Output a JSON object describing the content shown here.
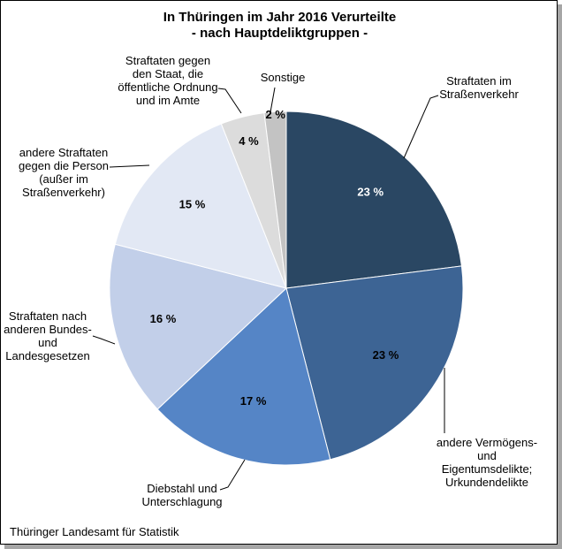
{
  "title": {
    "line1": "In Thüringen im Jahr 2016 Verurteilte",
    "line2": "- nach Hauptdeliktgruppen -"
  },
  "source": "Thüringer Landesamt für Statistik",
  "chart_data": {
    "type": "pie",
    "title": "In Thüringen im Jahr 2016 Verurteilte - nach Hauptdeliktgruppen -",
    "unit": "%",
    "start_angle_deg": 0,
    "direction": "clockwise",
    "legend_position": "outside-labels-with-leader-lines",
    "slices": [
      {
        "label": "Straftaten im\nStraßenverkehr",
        "value": 23,
        "pct_label": "23 %",
        "color": "#2A4763",
        "pct_color": "#FFFFFF"
      },
      {
        "label": "andere Vermögens-\nund\nEigentumsdelikte;\nUrkundendelikte",
        "value": 23,
        "pct_label": "23 %",
        "color": "#3D6494",
        "pct_color": "#000000"
      },
      {
        "label": "Diebstahl und\nUnterschlagung",
        "value": 17,
        "pct_label": "17 %",
        "color": "#5585C6",
        "pct_color": "#000000"
      },
      {
        "label": "Straftaten nach\nanderen Bundes-\nund\nLandesgesetzen",
        "value": 16,
        "pct_label": "16 %",
        "color": "#C2CFE9",
        "pct_color": "#000000"
      },
      {
        "label": "andere Straftaten\ngegen die Person\n(außer im\nStraßenverkehr)",
        "value": 15,
        "pct_label": "15 %",
        "color": "#E2E8F4",
        "pct_color": "#000000"
      },
      {
        "label": "Straftaten gegen\nden Staat, die\nöffentliche Ordnung\nund im Amte",
        "value": 4,
        "pct_label": "4 %",
        "color": "#DCDCDC",
        "pct_color": "#000000"
      },
      {
        "label": "Sonstige",
        "value": 2,
        "pct_label": "2 %",
        "color": "#C3C3C3",
        "pct_color": "#000000"
      }
    ]
  }
}
